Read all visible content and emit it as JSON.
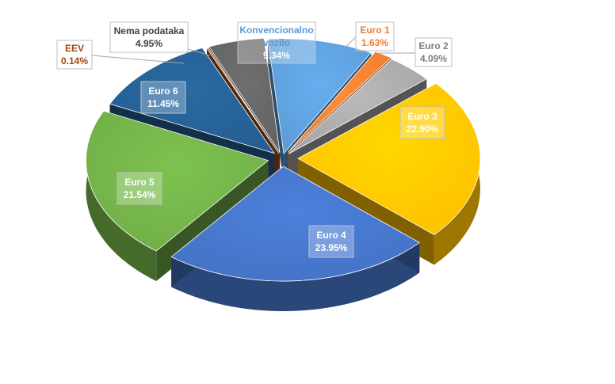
{
  "chart_data": {
    "type": "pie",
    "title": "",
    "slices": [
      {
        "name": "Konvencionalno vozilo",
        "label": [
          "Konvencionalno",
          "vozilo"
        ],
        "value_label": "9.34%",
        "value": 9.34,
        "color": "#5b9bd5",
        "label_text_color": "#5b9bd5",
        "value_text_color": "#ffffff"
      },
      {
        "name": "Euro 1",
        "label": [
          "Euro 1"
        ],
        "value_label": "1.63%",
        "value": 1.63,
        "color": "#ed7d31",
        "label_text_color": "#ed7d31",
        "value_text_color": "#ed7d31"
      },
      {
        "name": "Euro 2",
        "label": [
          "Euro 2"
        ],
        "value_label": "4.09%",
        "value": 4.09,
        "color": "#a5a5a5",
        "label_text_color": "#7f7f7f",
        "value_text_color": "#7f7f7f"
      },
      {
        "name": "Euro 3",
        "label": [
          "Euro 3"
        ],
        "value_label": "22.90%",
        "value": 22.9,
        "color": "#ffc000",
        "label_text_color": "#ffffff",
        "value_text_color": "#ffffff"
      },
      {
        "name": "Euro 4",
        "label": [
          "Euro 4"
        ],
        "value_label": "23.95%",
        "value": 23.95,
        "color": "#4472c4",
        "label_text_color": "#ffffff",
        "value_text_color": "#ffffff"
      },
      {
        "name": "Euro 5",
        "label": [
          "Euro 5"
        ],
        "value_label": "21.54%",
        "value": 21.54,
        "color": "#70ad47",
        "label_text_color": "#ffffff",
        "value_text_color": "#ffffff"
      },
      {
        "name": "Euro 6",
        "label": [
          "Euro 6"
        ],
        "value_label": "11.45%",
        "value": 11.45,
        "color": "#255e91",
        "label_text_color": "#ffffff",
        "value_text_color": "#ffffff"
      },
      {
        "name": "EEV",
        "label": [
          "EEV"
        ],
        "value_label": "0.14%",
        "value": 0.14,
        "color": "#9e480e",
        "label_text_color": "#9e480e",
        "value_text_color": "#9e480e"
      },
      {
        "name": "Nema podataka",
        "label": [
          "Nema podataka"
        ],
        "value_label": "4.95%",
        "value": 4.95,
        "color": "#636363",
        "label_text_color": "#404040",
        "value_text_color": "#404040"
      }
    ],
    "style": "3d-exploded",
    "legend": "none",
    "data_labels": "callout"
  }
}
